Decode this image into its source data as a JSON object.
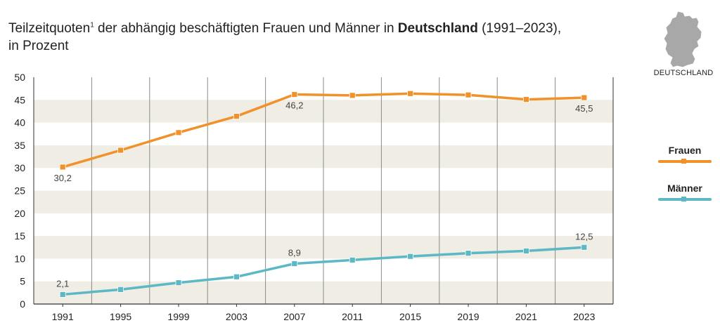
{
  "title": {
    "part1": "Teilzeitquoten",
    "footnote": "1",
    "part2": " der abhängig beschäftigten Frauen und Männer in ",
    "bold": "Deutschland",
    "part3": " (1991–2023),",
    "line2": "in Prozent"
  },
  "map": {
    "label": "DEUTSCHLAND",
    "icon": "germany-map-icon",
    "color": "#a8a8a8"
  },
  "colors": {
    "frauen": "#f0912a",
    "maenner": "#5bb8c4",
    "band": "#efede4",
    "grid": "#8a8a8a",
    "axis": "#333333"
  },
  "chart_data": {
    "type": "line",
    "categories": [
      "1991",
      "1995",
      "1999",
      "2003",
      "2007",
      "2011",
      "2015",
      "2019",
      "2021",
      "2023"
    ],
    "ylim": [
      0,
      50
    ],
    "yticks": [
      0,
      5,
      10,
      15,
      20,
      25,
      30,
      35,
      40,
      45,
      50
    ],
    "grid": true,
    "legend": "right",
    "series": [
      {
        "key": "frauen",
        "name": "Frauen",
        "values": [
          30.2,
          33.9,
          37.8,
          41.4,
          46.2,
          46.0,
          46.4,
          46.1,
          45.1,
          45.5
        ],
        "labels": [
          {
            "index": 0,
            "text": "30,2",
            "pos": "below"
          },
          {
            "index": 4,
            "text": "46,2",
            "pos": "below"
          },
          {
            "index": 9,
            "text": "45,5",
            "pos": "below"
          }
        ]
      },
      {
        "key": "maenner",
        "name": "Männer",
        "values": [
          2.1,
          3.2,
          4.7,
          6.0,
          8.9,
          9.7,
          10.5,
          11.2,
          11.7,
          12.5
        ],
        "labels": [
          {
            "index": 0,
            "text": "2,1",
            "pos": "above"
          },
          {
            "index": 4,
            "text": "8,9",
            "pos": "above"
          },
          {
            "index": 9,
            "text": "12,5",
            "pos": "above"
          }
        ]
      }
    ]
  }
}
